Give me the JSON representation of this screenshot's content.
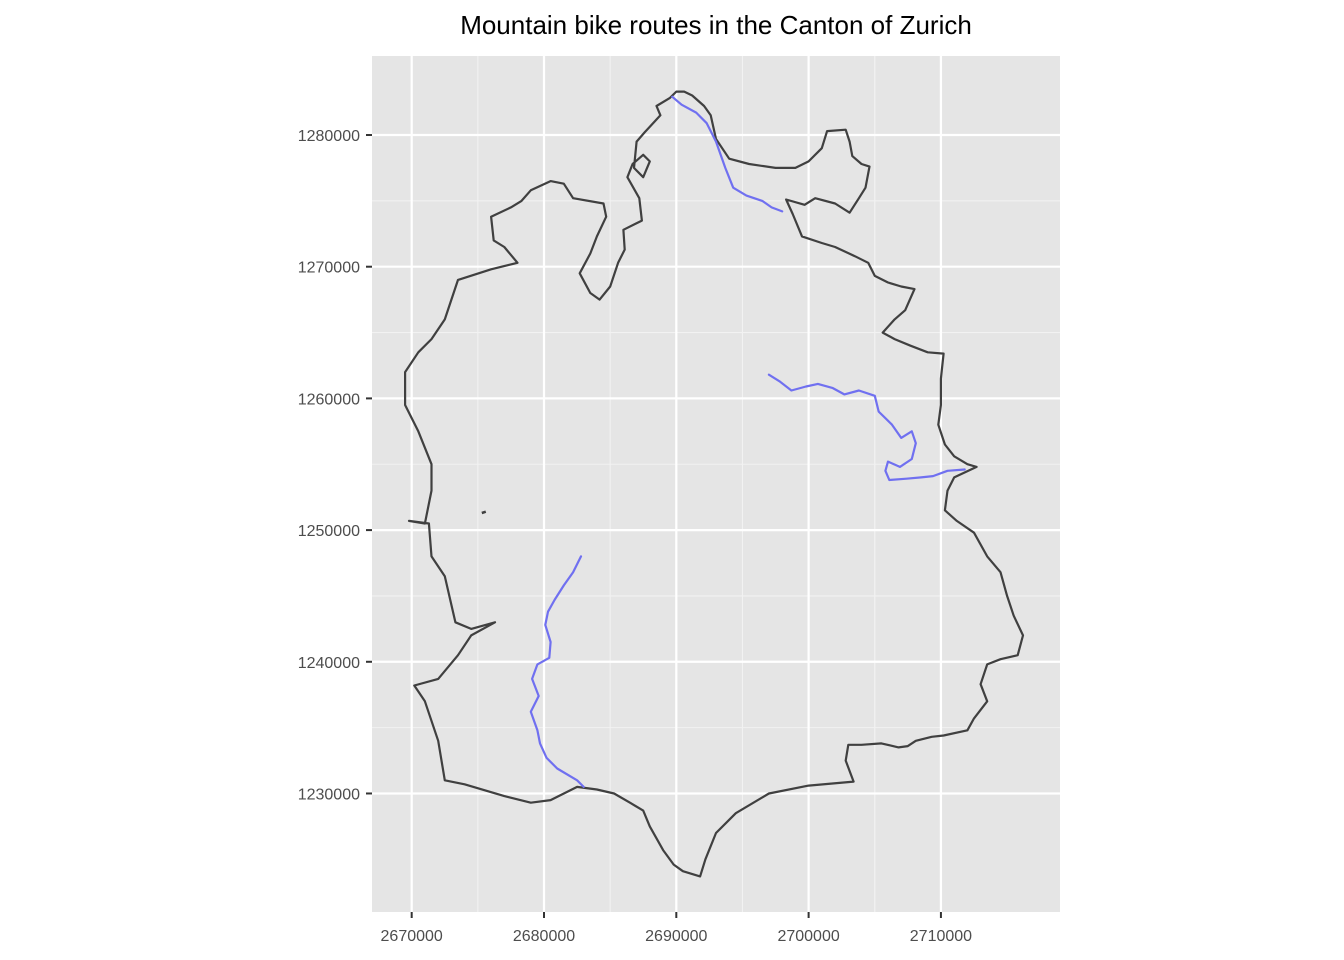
{
  "chart_data": {
    "type": "map",
    "title": "Mountain bike routes in the Canton of Zurich",
    "xlabel": "",
    "ylabel": "",
    "xlim": [
      2667000,
      2719000
    ],
    "ylim": [
      1221000,
      1286000
    ],
    "x_ticks": [
      2670000,
      2680000,
      2690000,
      2700000,
      2710000
    ],
    "y_ticks": [
      1230000,
      1240000,
      1250000,
      1260000,
      1270000,
      1280000
    ],
    "x_tick_labels": [
      "2670000",
      "2680000",
      "2690000",
      "2700000",
      "2710000"
    ],
    "y_tick_labels": [
      "1230000",
      "1240000",
      "1250000",
      "1260000",
      "1270000",
      "1280000"
    ],
    "grid": true,
    "panel_background": "#e5e5e5",
    "gridline_color": "#ffffff",
    "boundary_color": "#404040",
    "route_color": "#7070f0",
    "boundary": [
      [
        2682500,
        1230500
      ],
      [
        2680500,
        1229500
      ],
      [
        2679000,
        1229300
      ],
      [
        2677000,
        1229800
      ],
      [
        2674000,
        1230700
      ],
      [
        2672500,
        1231000
      ],
      [
        2672000,
        1234000
      ],
      [
        2671000,
        1237000
      ],
      [
        2670200,
        1238200
      ],
      [
        2672000,
        1238700
      ],
      [
        2673500,
        1240500
      ],
      [
        2674500,
        1242000
      ],
      [
        2676300,
        1243000
      ],
      [
        2674500,
        1242500
      ],
      [
        2673300,
        1243000
      ],
      [
        2672500,
        1246500
      ],
      [
        2671500,
        1248000
      ],
      [
        2671300,
        1250500
      ],
      [
        2669800,
        1250700
      ],
      [
        2671000,
        1250500
      ],
      [
        2671500,
        1253000
      ],
      [
        2671500,
        1255000
      ],
      [
        2670500,
        1257500
      ],
      [
        2669500,
        1259500
      ],
      [
        2669500,
        1262000
      ],
      [
        2670500,
        1263500
      ],
      [
        2671500,
        1264500
      ],
      [
        2672500,
        1266000
      ],
      [
        2673500,
        1269000
      ],
      [
        2676000,
        1269800
      ],
      [
        2678000,
        1270300
      ],
      [
        2677000,
        1271500
      ],
      [
        2676200,
        1272000
      ],
      [
        2676000,
        1273800
      ],
      [
        2677500,
        1274500
      ],
      [
        2678300,
        1275000
      ],
      [
        2679000,
        1275800
      ],
      [
        2680500,
        1276500
      ],
      [
        2681500,
        1276300
      ],
      [
        2682200,
        1275200
      ],
      [
        2684500,
        1274800
      ],
      [
        2684700,
        1273800
      ],
      [
        2684000,
        1272300
      ],
      [
        2683500,
        1271000
      ],
      [
        2682700,
        1269500
      ],
      [
        2683500,
        1268000
      ],
      [
        2684200,
        1267500
      ],
      [
        2685000,
        1268500
      ],
      [
        2685600,
        1270300
      ],
      [
        2686100,
        1271300
      ],
      [
        2686000,
        1272800
      ],
      [
        2687400,
        1273500
      ],
      [
        2687200,
        1275200
      ],
      [
        2686300,
        1276800
      ],
      [
        2686700,
        1277800
      ],
      [
        2687500,
        1278500
      ],
      [
        2688000,
        1278000
      ],
      [
        2687500,
        1276800
      ],
      [
        2686800,
        1277500
      ],
      [
        2687000,
        1279500
      ],
      [
        2687600,
        1280200
      ],
      [
        2688800,
        1281500
      ],
      [
        2688500,
        1282200
      ],
      [
        2689500,
        1282800
      ],
      [
        2690000,
        1283300
      ],
      [
        2690600,
        1283300
      ],
      [
        2691200,
        1283000
      ],
      [
        2692100,
        1282200
      ],
      [
        2692600,
        1281500
      ],
      [
        2693000,
        1279700
      ],
      [
        2694000,
        1278200
      ],
      [
        2695500,
        1277800
      ],
      [
        2697500,
        1277500
      ],
      [
        2699000,
        1277500
      ],
      [
        2700000,
        1278000
      ],
      [
        2701000,
        1279000
      ],
      [
        2701400,
        1280300
      ],
      [
        2702800,
        1280400
      ],
      [
        2703100,
        1279500
      ],
      [
        2703300,
        1278400
      ],
      [
        2704000,
        1277800
      ],
      [
        2704600,
        1277600
      ],
      [
        2704300,
        1276000
      ],
      [
        2703800,
        1275200
      ],
      [
        2703100,
        1274100
      ],
      [
        2702000,
        1274800
      ],
      [
        2700500,
        1275200
      ],
      [
        2699700,
        1274700
      ],
      [
        2698300,
        1275100
      ],
      [
        2698800,
        1274000
      ],
      [
        2699500,
        1272300
      ],
      [
        2701000,
        1271800
      ],
      [
        2702000,
        1271500
      ],
      [
        2703500,
        1270800
      ],
      [
        2704500,
        1270300
      ],
      [
        2705000,
        1269300
      ],
      [
        2706000,
        1268800
      ],
      [
        2707000,
        1268500
      ],
      [
        2708000,
        1268300
      ],
      [
        2707300,
        1266700
      ],
      [
        2706500,
        1266000
      ],
      [
        2705600,
        1265000
      ],
      [
        2706500,
        1264500
      ],
      [
        2707700,
        1264000
      ],
      [
        2709000,
        1263500
      ],
      [
        2710200,
        1263400
      ],
      [
        2710000,
        1261500
      ],
      [
        2710000,
        1259500
      ],
      [
        2709800,
        1258000
      ],
      [
        2710300,
        1256500
      ],
      [
        2711000,
        1255600
      ],
      [
        2712000,
        1255000
      ],
      [
        2712700,
        1254800
      ],
      [
        2711000,
        1254000
      ],
      [
        2710500,
        1253000
      ],
      [
        2710300,
        1251500
      ],
      [
        2711200,
        1250700
      ],
      [
        2712500,
        1249800
      ],
      [
        2713500,
        1248000
      ],
      [
        2714500,
        1246800
      ],
      [
        2715000,
        1245000
      ],
      [
        2715500,
        1243500
      ],
      [
        2716200,
        1242000
      ],
      [
        2715800,
        1240500
      ],
      [
        2714500,
        1240200
      ],
      [
        2713500,
        1239800
      ],
      [
        2713000,
        1238300
      ],
      [
        2713500,
        1237000
      ],
      [
        2712500,
        1235700
      ],
      [
        2712000,
        1234800
      ],
      [
        2710200,
        1234400
      ],
      [
        2709300,
        1234300
      ],
      [
        2708100,
        1234000
      ],
      [
        2707500,
        1233600
      ],
      [
        2706800,
        1233500
      ],
      [
        2705500,
        1233800
      ],
      [
        2704000,
        1233700
      ],
      [
        2703000,
        1233700
      ],
      [
        2702800,
        1232500
      ],
      [
        2703400,
        1230900
      ],
      [
        2700000,
        1230600
      ],
      [
        2697000,
        1230000
      ],
      [
        2694500,
        1228500
      ],
      [
        2693000,
        1227000
      ],
      [
        2692200,
        1225000
      ],
      [
        2691800,
        1223700
      ],
      [
        2690500,
        1224100
      ],
      [
        2689800,
        1224600
      ],
      [
        2689000,
        1225700
      ],
      [
        2688000,
        1227500
      ],
      [
        2687500,
        1228700
      ],
      [
        2686500,
        1229300
      ],
      [
        2685300,
        1230000
      ],
      [
        2684000,
        1230300
      ],
      [
        2682500,
        1230500
      ]
    ],
    "islands": [
      [
        [
          2675300,
          1251300
        ],
        [
          2675600,
          1251400
        ]
      ]
    ],
    "routes": [
      [
        [
          2689700,
          1282900
        ],
        [
          2690400,
          1282300
        ],
        [
          2691500,
          1281700
        ],
        [
          2692300,
          1280900
        ],
        [
          2693000,
          1279500
        ],
        [
          2693700,
          1277500
        ],
        [
          2694300,
          1276000
        ],
        [
          2695300,
          1275400
        ],
        [
          2696500,
          1275000
        ],
        [
          2697200,
          1274500
        ],
        [
          2698000,
          1274200
        ]
      ],
      [
        [
          2697000,
          1261800
        ],
        [
          2697800,
          1261300
        ],
        [
          2698700,
          1260600
        ],
        [
          2699800,
          1260900
        ],
        [
          2700700,
          1261100
        ],
        [
          2701800,
          1260800
        ],
        [
          2702700,
          1260300
        ],
        [
          2703800,
          1260600
        ],
        [
          2705000,
          1260200
        ],
        [
          2705300,
          1259000
        ],
        [
          2706300,
          1258000
        ],
        [
          2707000,
          1257000
        ],
        [
          2707800,
          1257500
        ],
        [
          2708100,
          1256600
        ],
        [
          2707800,
          1255400
        ],
        [
          2706900,
          1254800
        ],
        [
          2706000,
          1255200
        ],
        [
          2705800,
          1254500
        ],
        [
          2706100,
          1253800
        ],
        [
          2707400,
          1253900
        ],
        [
          2708500,
          1254000
        ],
        [
          2709400,
          1254100
        ],
        [
          2710500,
          1254500
        ],
        [
          2711800,
          1254600
        ]
      ],
      [
        [
          2682800,
          1248000
        ],
        [
          2682200,
          1246800
        ],
        [
          2681500,
          1245800
        ],
        [
          2680800,
          1244700
        ],
        [
          2680300,
          1243800
        ],
        [
          2680100,
          1242800
        ],
        [
          2680500,
          1241500
        ],
        [
          2680400,
          1240300
        ],
        [
          2679500,
          1239800
        ],
        [
          2679100,
          1238700
        ],
        [
          2679600,
          1237400
        ],
        [
          2679000,
          1236200
        ],
        [
          2679500,
          1234800
        ],
        [
          2679700,
          1233800
        ],
        [
          2680200,
          1232700
        ],
        [
          2681000,
          1231900
        ],
        [
          2682500,
          1231000
        ],
        [
          2683000,
          1230500
        ]
      ]
    ]
  }
}
